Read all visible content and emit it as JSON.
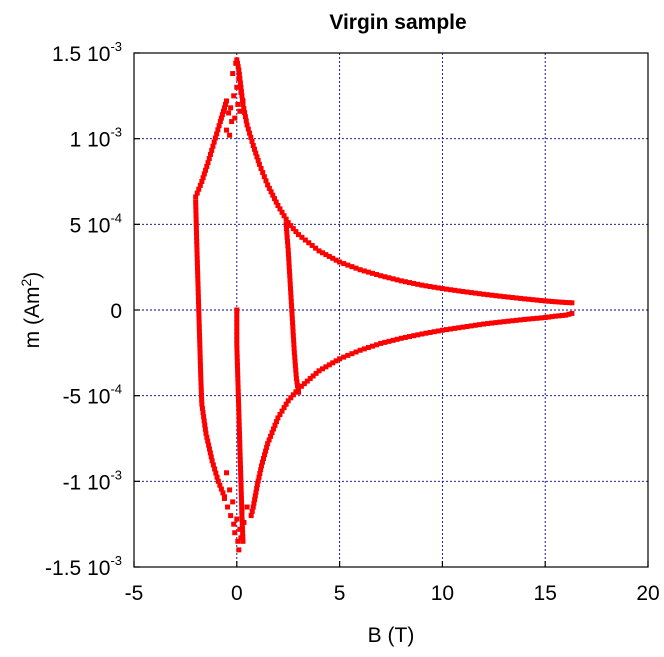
{
  "chart_data": {
    "type": "scatter",
    "title": "Virgin sample",
    "xlabel": "B (T)",
    "ylabel_base": "m (Am",
    "ylabel_sup": "2",
    "ylabel_tail": ")",
    "xlim": [
      -5,
      20
    ],
    "ylim": [
      -0.0015,
      0.0015
    ],
    "grid": true,
    "x_ticks": [
      {
        "value": -5,
        "label": "-5"
      },
      {
        "value": 0,
        "label": "0"
      },
      {
        "value": 5,
        "label": "5"
      },
      {
        "value": 10,
        "label": "10"
      },
      {
        "value": 15,
        "label": "15"
      },
      {
        "value": 20,
        "label": "20"
      }
    ],
    "y_ticks": [
      {
        "value": 0.0015,
        "mant": "1.5 10",
        "exp": "-3"
      },
      {
        "value": 0.001,
        "mant": "1 10",
        "exp": "-3"
      },
      {
        "value": 0.0005,
        "mant": "5 10",
        "exp": "-4"
      },
      {
        "value": 0,
        "mant": "0",
        "exp": ""
      },
      {
        "value": -0.0005,
        "mant": "-5 10",
        "exp": "-4"
      },
      {
        "value": -0.001,
        "mant": "-1 10",
        "exp": "-3"
      },
      {
        "value": -0.0015,
        "mant": "-1.5 10",
        "exp": "-3"
      }
    ],
    "marker_color": "#ff0000",
    "series": [
      {
        "segments": [
          [
            [
              0.0,
              0.00146
            ],
            [
              0.1,
              0.0014
            ],
            [
              0.2,
              0.0013
            ],
            [
              0.3,
              0.0012
            ],
            [
              0.5,
              0.00108
            ],
            [
              0.8,
              0.00096
            ],
            [
              1.1,
              0.00085
            ],
            [
              1.5,
              0.00073
            ],
            [
              2.0,
              0.00061
            ],
            [
              2.5,
              0.00051
            ],
            [
              3.0,
              0.00044
            ],
            [
              4.0,
              0.000345
            ],
            [
              5.0,
              0.00028
            ],
            [
              6.0,
              0.000235
            ],
            [
              7.0,
              0.0002
            ],
            [
              8.0,
              0.00017
            ],
            [
              9.0,
              0.000145
            ],
            [
              10.0,
              0.000125
            ],
            [
              11.0,
              0.000108
            ],
            [
              12.0,
              9.2e-05
            ],
            [
              13.0,
              7.8e-05
            ],
            [
              14.0,
              6.5e-05
            ],
            [
              15.0,
              5.3e-05
            ],
            [
              15.5,
              4.8e-05
            ],
            [
              16.0,
              4.4e-05
            ],
            [
              16.3,
              4.2e-05
            ]
          ],
          [
            [
              16.3,
              -2e-05
            ],
            [
              16.0,
              -3e-05
            ],
            [
              15.5,
              -3.6e-05
            ],
            [
              15.0,
              -4.4e-05
            ],
            [
              14.0,
              -5.5e-05
            ],
            [
              13.0,
              -6.8e-05
            ],
            [
              12.0,
              -8.2e-05
            ],
            [
              11.0,
              -0.0001
            ],
            [
              10.0,
              -0.000118
            ],
            [
              9.0,
              -0.00014
            ],
            [
              8.0,
              -0.000165
            ],
            [
              7.0,
              -0.000195
            ],
            [
              6.0,
              -0.000235
            ],
            [
              5.0,
              -0.000285
            ],
            [
              4.0,
              -0.000355
            ],
            [
              3.0,
              -0.00046
            ],
            [
              2.5,
              -0.00053
            ],
            [
              2.0,
              -0.00063
            ],
            [
              1.5,
              -0.00078
            ],
            [
              1.2,
              -0.00091
            ],
            [
              1.0,
              -0.00102
            ],
            [
              0.8,
              -0.00115
            ],
            [
              0.7,
              -0.0012
            ]
          ],
          [
            [
              -2.0,
              0.00066
            ],
            [
              -1.7,
              0.00075
            ],
            [
              -1.4,
              0.00086
            ],
            [
              -1.1,
              0.00098
            ],
            [
              -0.8,
              0.0011
            ],
            [
              -0.6,
              0.00118
            ],
            [
              -0.5,
              0.00122
            ]
          ],
          [
            [
              -2.0,
              0.00063
            ],
            [
              -1.95,
              0.0004
            ],
            [
              -1.9,
              0.0002
            ],
            [
              -1.85,
              0.0
            ],
            [
              -1.8,
              -0.0002
            ],
            [
              -1.75,
              -0.0004
            ],
            [
              -1.7,
              -0.00055
            ],
            [
              -1.5,
              -0.00072
            ],
            [
              -1.2,
              -0.00088
            ],
            [
              -0.9,
              -0.001
            ],
            [
              -0.6,
              -0.00109
            ]
          ],
          [
            [
              2.4,
              0.0005
            ],
            [
              2.5,
              0.00035
            ],
            [
              2.6,
              0.00015
            ],
            [
              2.7,
              -5e-05
            ],
            [
              2.8,
              -0.00025
            ],
            [
              2.9,
              -0.0004
            ],
            [
              3.0,
              -0.00048
            ]
          ],
          [
            [
              0.0,
              0.0
            ],
            [
              0.0,
              -0.0002
            ],
            [
              0.05,
              -0.0004
            ],
            [
              0.1,
              -0.0006
            ],
            [
              0.15,
              -0.0008
            ],
            [
              0.2,
              -0.001
            ],
            [
              0.25,
              -0.0012
            ],
            [
              0.3,
              -0.00135
            ]
          ]
        ],
        "scatter_clusters": [
          [
            [
              -0.5,
              0.00105
            ],
            [
              -0.4,
              0.00115
            ],
            [
              -0.35,
              0.00102
            ],
            [
              -0.3,
              0.00118
            ],
            [
              -0.25,
              0.0011
            ],
            [
              -0.15,
              0.00125
            ],
            [
              -0.1,
              0.00112
            ],
            [
              0.0,
              0.0013
            ],
            [
              0.05,
              0.0012
            ],
            [
              0.1,
              0.00135
            ],
            [
              0.2,
              0.00127
            ],
            [
              -0.2,
              0.00138
            ],
            [
              0.15,
              0.00116
            ],
            [
              0.3,
              0.00122
            ],
            [
              -0.05,
              0.00144
            ]
          ],
          [
            [
              -0.6,
              -0.0011
            ],
            [
              -0.5,
              -0.00095
            ],
            [
              -0.45,
              -0.00115
            ],
            [
              -0.35,
              -0.00105
            ],
            [
              -0.3,
              -0.0012
            ],
            [
              -0.2,
              -0.00112
            ],
            [
              -0.15,
              -0.00125
            ],
            [
              -0.1,
              -0.0013
            ],
            [
              0.0,
              -0.00122
            ],
            [
              0.05,
              -0.00135
            ],
            [
              0.1,
              -0.0014
            ],
            [
              0.15,
              -0.00128
            ],
            [
              0.2,
              -0.00133
            ],
            [
              0.25,
              -0.00118
            ],
            [
              0.35,
              -0.00124
            ],
            [
              0.5,
              -0.00115
            ]
          ]
        ]
      }
    ]
  }
}
